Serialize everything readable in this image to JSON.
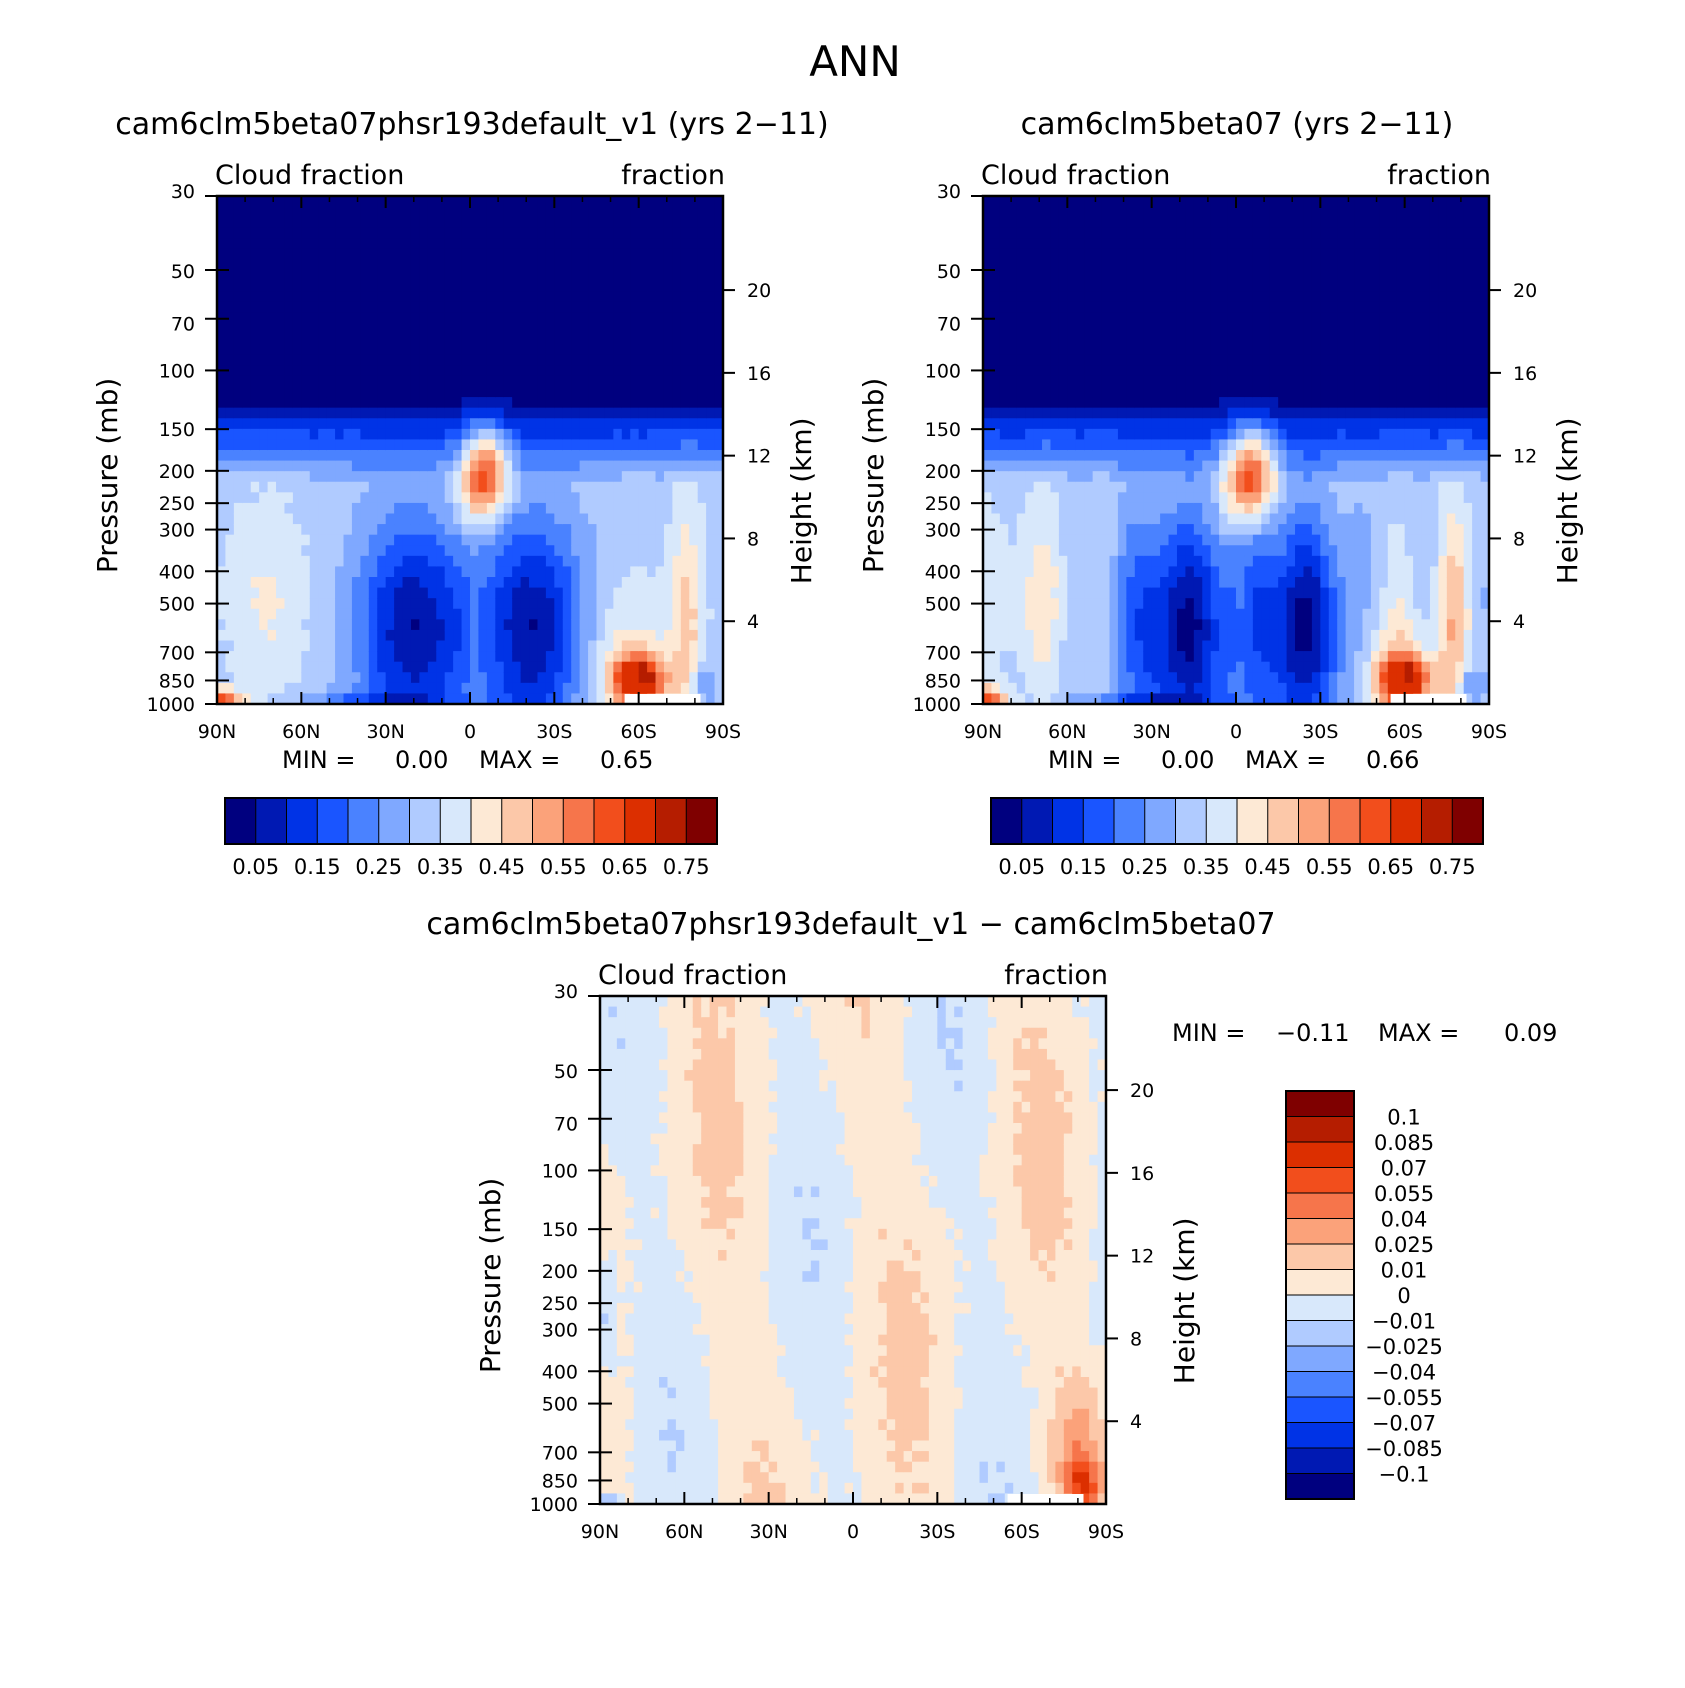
{
  "figure_title": "ANN",
  "chart_data": [
    {
      "type": "heatmap",
      "title": "cam6clm5beta07phsr193default_v1 (yrs 2−11)",
      "left_string": "Cloud fraction",
      "right_string": "fraction",
      "ylabel": "Pressure (mb)",
      "ylabel_right": "Height (km)",
      "x_ticks": [
        "90N",
        "60N",
        "30N",
        "0",
        "30S",
        "60S",
        "90S"
      ],
      "y_ticks": [
        "30",
        "50",
        "70",
        "100",
        "150",
        "200",
        "250",
        "300",
        "400",
        "500",
        "700",
        "850",
        "1000"
      ],
      "y_right_ticks": [
        "20",
        "16",
        "12",
        "8",
        "4"
      ],
      "stats": {
        "min_label": "MIN =",
        "min_value": "0.00",
        "max_label": "MAX =",
        "max_value": "0.65"
      },
      "colorbar": {
        "orientation": "horizontal",
        "colors": [
          "#00007f",
          "#0019b3",
          "#0033e6",
          "#1a55ff",
          "#4a82ff",
          "#7fa8ff",
          "#b0cbff",
          "#d8e8fb",
          "#fde9d5",
          "#fcc8a9",
          "#fba27a",
          "#f6754b",
          "#f24e1c",
          "#dc2f00",
          "#b51d00",
          "#7f0000"
        ],
        "labels": [
          "0.05",
          "0.15",
          "0.25",
          "0.35",
          "0.45",
          "0.55",
          "0.65",
          "0.75"
        ]
      },
      "features": [
        {
          "lat": 0,
          "p": 700,
          "value": 0.05
        },
        {
          "lat": -60,
          "p": 850,
          "value": 0.65
        },
        {
          "lat": -5,
          "p": 200,
          "value": 0.4
        }
      ]
    },
    {
      "type": "heatmap",
      "title": "cam6clm5beta07 (yrs 2−11)",
      "left_string": "Cloud fraction",
      "right_string": "fraction",
      "ylabel": "Pressure (mb)",
      "ylabel_right": "Height (km)",
      "x_ticks": [
        "90N",
        "60N",
        "30N",
        "0",
        "30S",
        "60S",
        "90S"
      ],
      "y_ticks": [
        "30",
        "50",
        "70",
        "100",
        "150",
        "200",
        "250",
        "300",
        "400",
        "500",
        "700",
        "850",
        "1000"
      ],
      "y_right_ticks": [
        "20",
        "16",
        "12",
        "8",
        "4"
      ],
      "stats": {
        "min_label": "MIN =",
        "min_value": "0.00",
        "max_label": "MAX =",
        "max_value": "0.66"
      },
      "colorbar": {
        "orientation": "horizontal",
        "colors": [
          "#00007f",
          "#0019b3",
          "#0033e6",
          "#1a55ff",
          "#4a82ff",
          "#7fa8ff",
          "#b0cbff",
          "#d8e8fb",
          "#fde9d5",
          "#fcc8a9",
          "#fba27a",
          "#f6754b",
          "#f24e1c",
          "#dc2f00",
          "#b51d00",
          "#7f0000"
        ],
        "labels": [
          "0.05",
          "0.15",
          "0.25",
          "0.35",
          "0.45",
          "0.55",
          "0.65",
          "0.75"
        ]
      },
      "features": [
        {
          "lat": 0,
          "p": 700,
          "value": 0.05
        },
        {
          "lat": -60,
          "p": 850,
          "value": 0.66
        },
        {
          "lat": -5,
          "p": 200,
          "value": 0.4
        }
      ]
    },
    {
      "type": "heatmap",
      "title": "cam6clm5beta07phsr193default_v1 − cam6clm5beta07",
      "left_string": "Cloud fraction",
      "right_string": "fraction",
      "ylabel": "Pressure (mb)",
      "ylabel_right": "Height (km)",
      "x_ticks": [
        "90N",
        "60N",
        "30N",
        "0",
        "30S",
        "60S",
        "90S"
      ],
      "y_ticks": [
        "30",
        "50",
        "70",
        "100",
        "150",
        "200",
        "250",
        "300",
        "400",
        "500",
        "700",
        "850",
        "1000"
      ],
      "y_right_ticks": [
        "20",
        "16",
        "12",
        "8",
        "4"
      ],
      "stats": {
        "min_label": "MIN =",
        "min_value": "−0.11",
        "max_label": "MAX =",
        "max_value": "0.09"
      },
      "colorbar": {
        "orientation": "vertical",
        "colors": [
          "#00007f",
          "#0019b3",
          "#0033e6",
          "#1a55ff",
          "#4a82ff",
          "#7fa8ff",
          "#b0cbff",
          "#d8e8fb",
          "#fde9d5",
          "#fcc8a9",
          "#fba27a",
          "#f6754b",
          "#f24e1c",
          "#dc2f00",
          "#b51d00",
          "#7f0000"
        ],
        "labels": [
          "−0.1",
          "−0.085",
          "−0.07",
          "−0.055",
          "−0.04",
          "−0.025",
          "−0.01",
          "0",
          "0.01",
          "0.025",
          "0.04",
          "0.055",
          "0.07",
          "0.085",
          "0.1"
        ]
      },
      "features": [
        {
          "lat": -80,
          "p": 900,
          "value": 0.09
        },
        {
          "lat": 88,
          "p": 950,
          "value": -0.11
        }
      ]
    }
  ]
}
